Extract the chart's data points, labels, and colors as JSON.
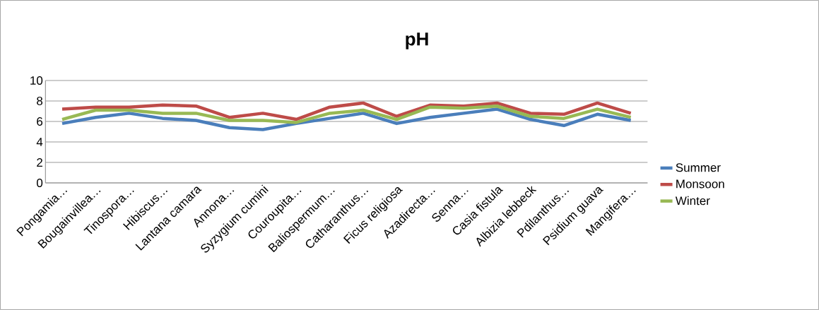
{
  "chart_data": {
    "type": "line",
    "title": "pH",
    "categories": [
      "Pongamia…",
      "Bougainvillea…",
      "Tinospora…",
      "Hibiscus…",
      "Lantana camara",
      "Annona…",
      "Syzygium cumini",
      "Couroupita…",
      "Baliospermum…",
      "Catharanthus…",
      "Ficus religiosa",
      "Azadirecta…",
      "Senna…",
      "Casia fistula",
      "Albizia lebbeck",
      "Pdilanthus…",
      "Psidium guava",
      "Mangifera…"
    ],
    "series": [
      {
        "name": "Summer",
        "color": "#4a7ebb",
        "values": [
          5.8,
          6.4,
          6.8,
          6.3,
          6.1,
          5.4,
          5.2,
          5.8,
          6.3,
          6.8,
          5.8,
          6.4,
          6.8,
          7.2,
          6.2,
          5.6,
          6.7,
          6.1
        ]
      },
      {
        "name": "Monsoon",
        "color": "#be4b48",
        "values": [
          7.2,
          7.4,
          7.4,
          7.6,
          7.5,
          6.4,
          6.8,
          6.2,
          7.4,
          7.8,
          6.5,
          7.6,
          7.5,
          7.8,
          6.8,
          6.7,
          7.8,
          6.8
        ]
      },
      {
        "name": "Winter",
        "color": "#98b954",
        "values": [
          6.2,
          7.1,
          7.1,
          6.8,
          6.8,
          6.1,
          6.1,
          5.9,
          6.8,
          7.1,
          6.2,
          7.4,
          7.3,
          7.5,
          6.5,
          6.3,
          7.2,
          6.4
        ]
      }
    ],
    "ylim": [
      0,
      10
    ],
    "yticks": [
      0,
      2,
      4,
      6,
      8,
      10
    ],
    "grid": "y",
    "legend": "right",
    "marker": "none",
    "line_style": "solid"
  }
}
